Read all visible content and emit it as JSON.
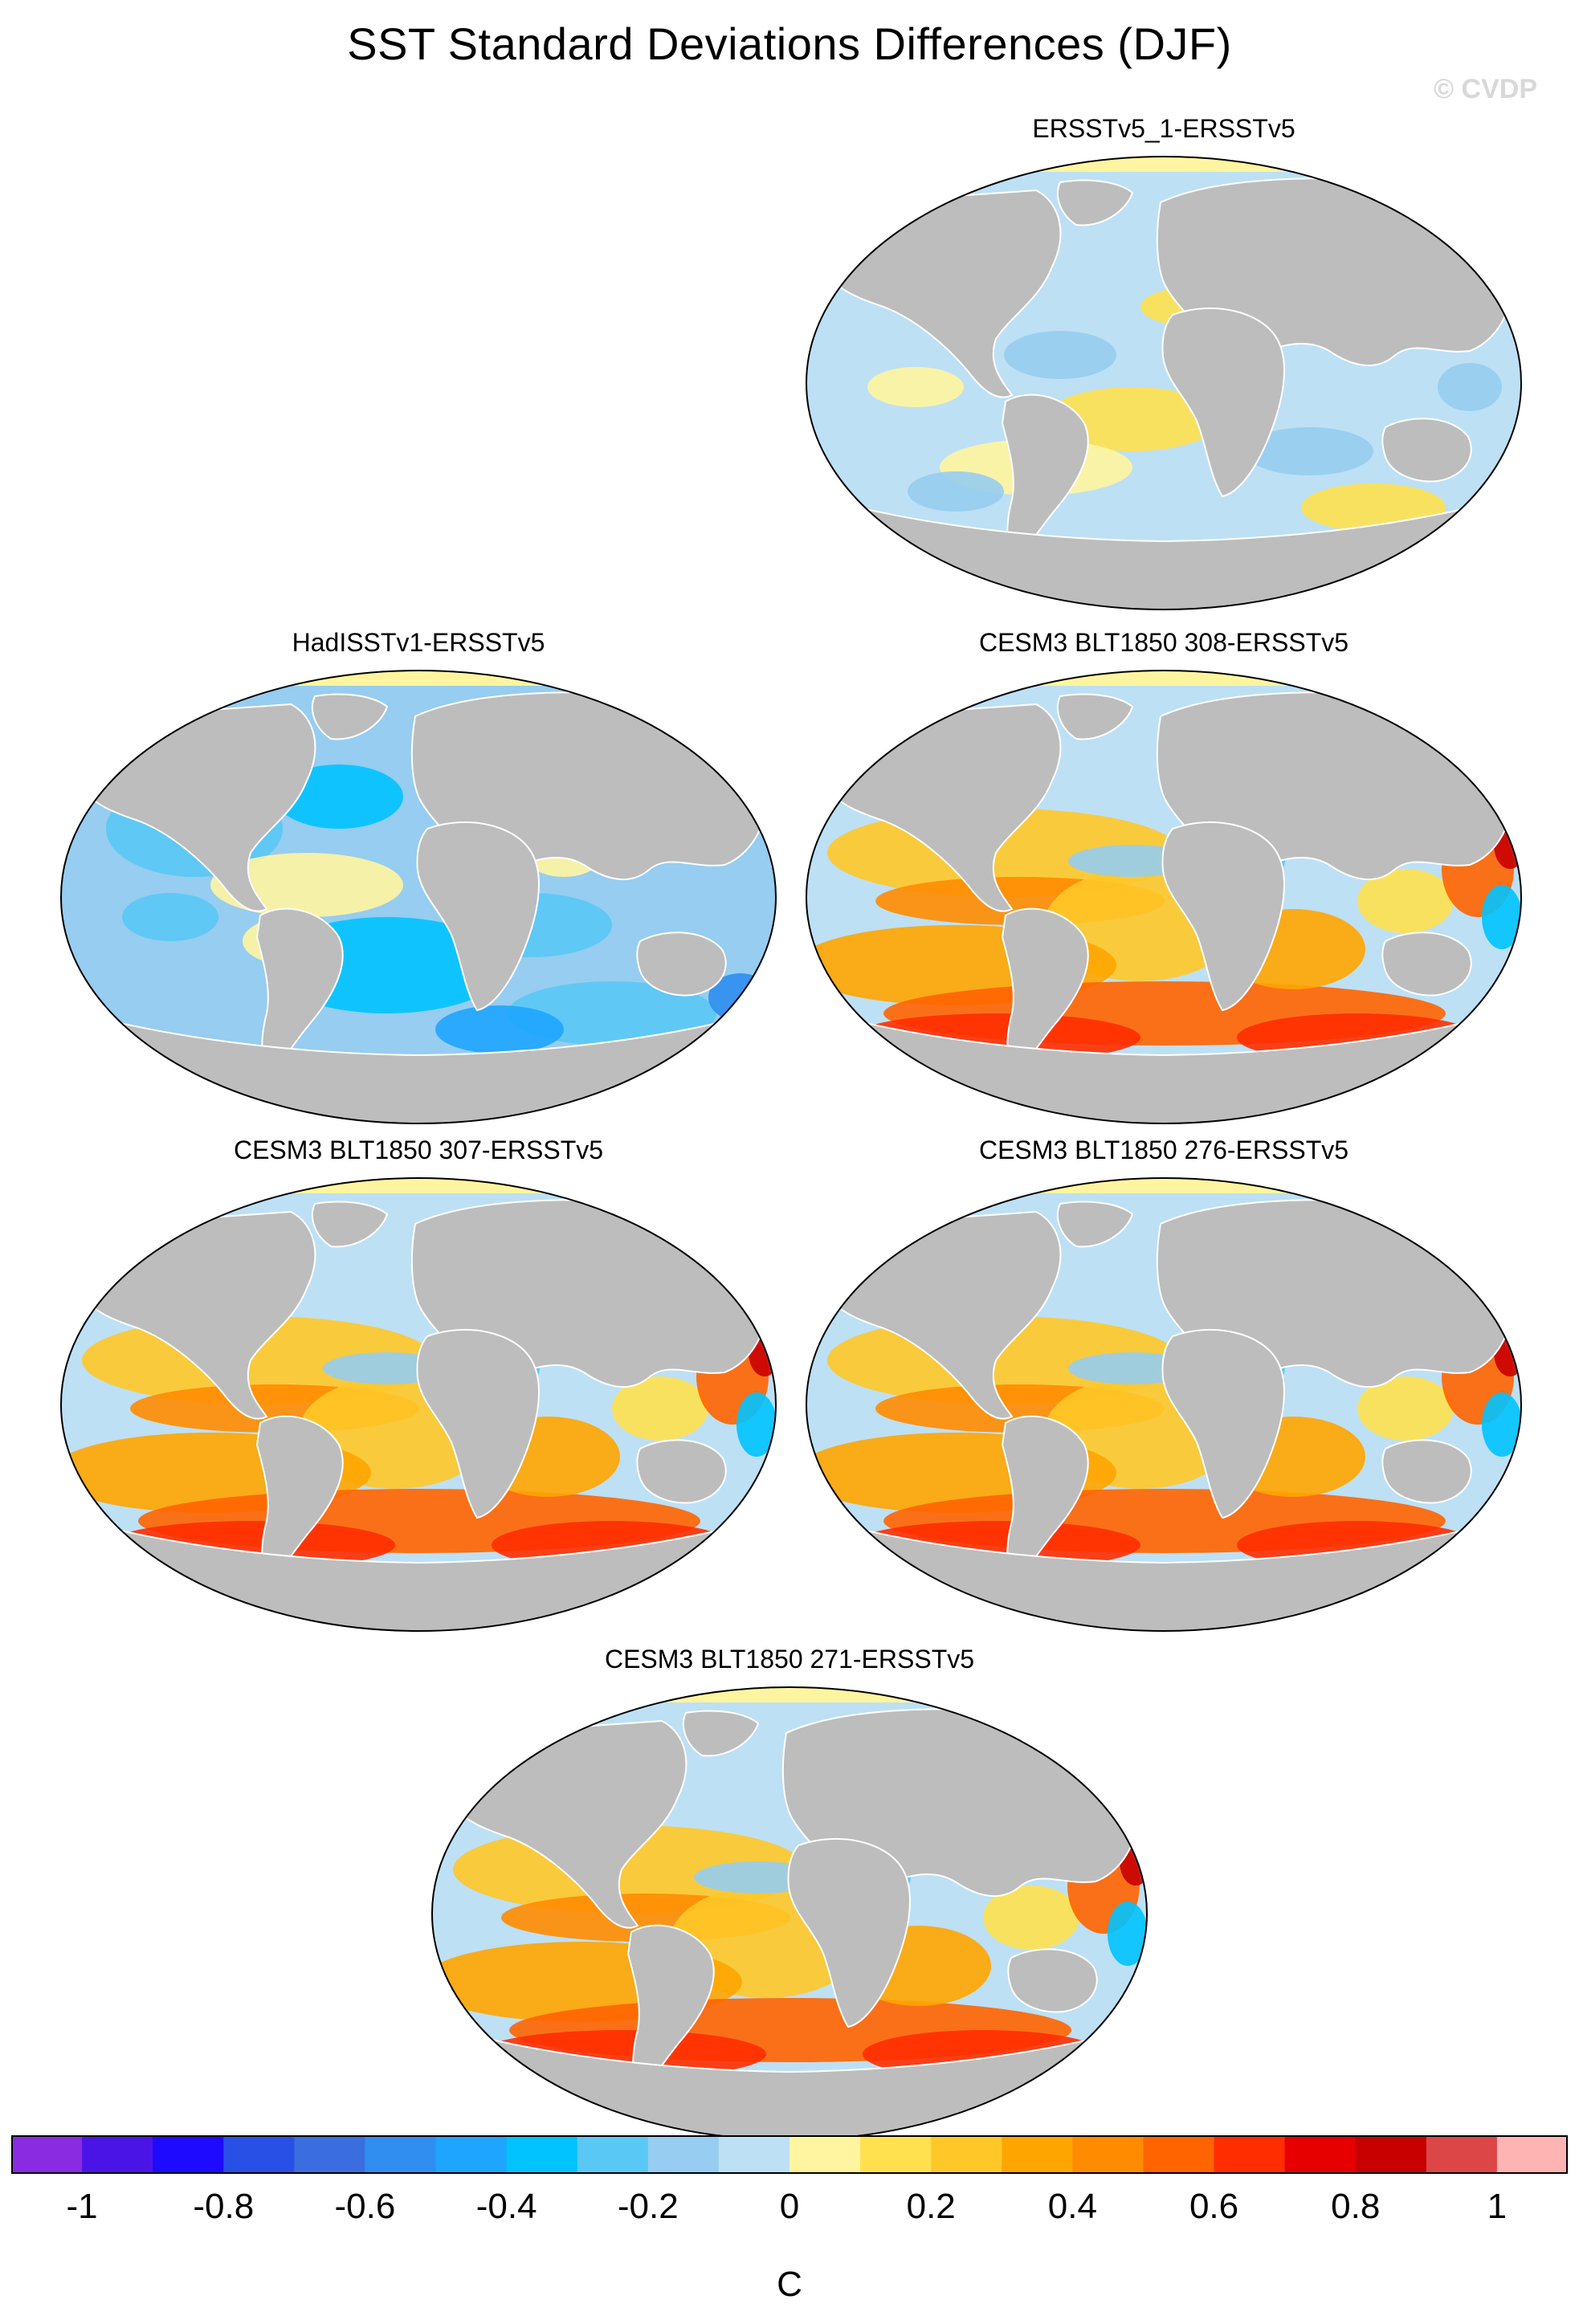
{
  "title": "SST Standard Deviations Differences (DJF)",
  "watermark": "© CVDP",
  "panels": [
    {
      "label": "ERSSTv5_1-ERSSTv5",
      "pattern": "near-zero"
    },
    {
      "label": "HadISSTv1-ERSSTv5",
      "pattern": "negative"
    },
    {
      "label": "CESM3 BLT1850 308-ERSSTv5",
      "pattern": "positive"
    },
    {
      "label": "CESM3 BLT1850 307-ERSSTv5",
      "pattern": "positive"
    },
    {
      "label": "CESM3 BLT1850 276-ERSSTv5",
      "pattern": "positive"
    },
    {
      "label": "CESM3 BLT1850 271-ERSSTv5",
      "pattern": "positive"
    }
  ],
  "colorbar": {
    "units": "C",
    "tick_labels": [
      "-1",
      "-0.8",
      "-0.6",
      "-0.4",
      "-0.2",
      "0",
      "0.2",
      "0.4",
      "0.6",
      "0.8",
      "1"
    ],
    "tick_values": [
      -1,
      -0.8,
      -0.6,
      -0.4,
      -0.2,
      0,
      0.2,
      0.4,
      0.6,
      0.8,
      1
    ],
    "colors": [
      "#8a2be2",
      "#4b14e6",
      "#1e0aff",
      "#2850e6",
      "#3a6ee0",
      "#2f8ef0",
      "#1ea5ff",
      "#00c3ff",
      "#5ac8f5",
      "#96cdf0",
      "#bde0f5",
      "#fff5a0",
      "#ffe150",
      "#ffc828",
      "#ffa500",
      "#ff8c00",
      "#ff6400",
      "#ff2d00",
      "#e60000",
      "#c80000",
      "#dc4646",
      "#ffb4b4"
    ]
  },
  "palette": {
    "land": "#bdbdbd",
    "coastline": "#ffffff",
    "sea_ice": "#fff5a0"
  }
}
